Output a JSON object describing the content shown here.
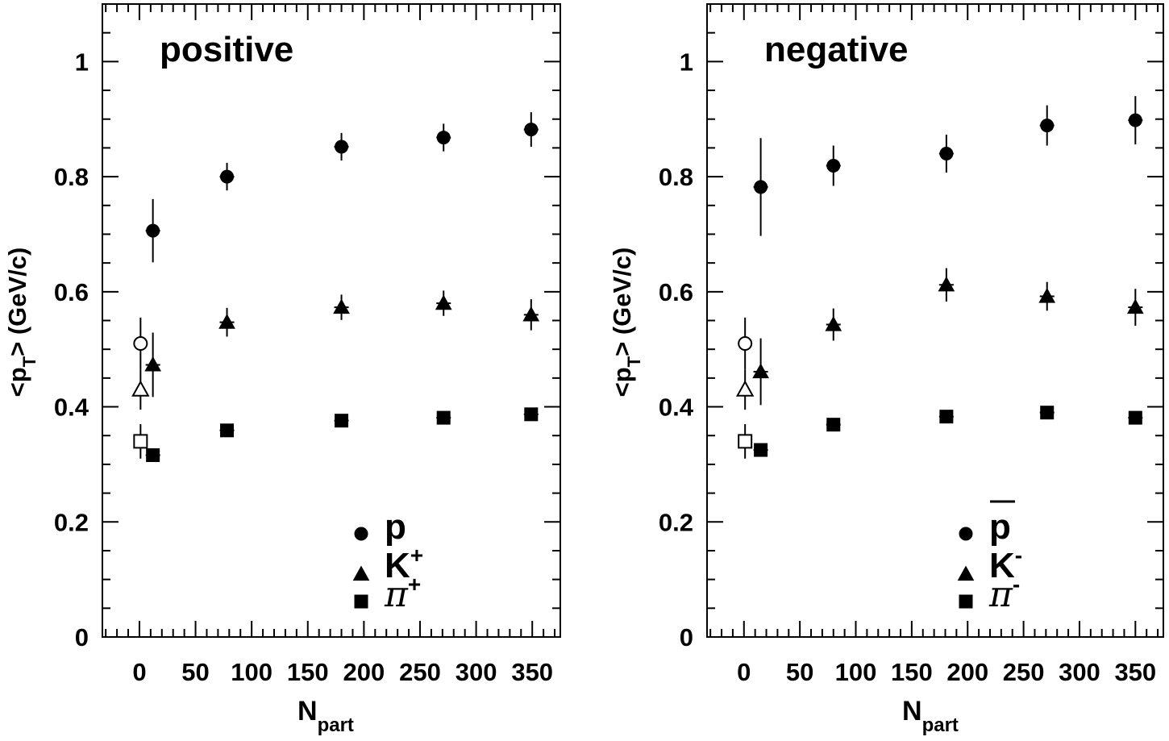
{
  "chart_data": [
    {
      "type": "scatter",
      "title": "positive",
      "xlabel": "N",
      "xlabel_sub": "part",
      "ylabel": "<p",
      "ylabel_sub": "T",
      "ylabel_rest": "> (GeV/c)",
      "xlim": [
        -33,
        375
      ],
      "ylim": [
        0,
        1.1
      ],
      "xticks": [
        0,
        50,
        100,
        150,
        200,
        250,
        300,
        350
      ],
      "yticks": [
        0,
        0.2,
        0.4,
        0.6,
        0.8,
        1
      ],
      "ytick_labels": [
        "0",
        "0.2",
        "0.4",
        "0.6",
        "0.8",
        "1"
      ],
      "grid": false,
      "legend_position": "bottom-right",
      "series": [
        {
          "name": "p",
          "legend_sup": "",
          "overline": false,
          "marker": "circle",
          "x": [
            12,
            78,
            180,
            271,
            349
          ],
          "y": [
            0.706,
            0.8,
            0.852,
            0.868,
            0.882
          ],
          "err": [
            0.055,
            0.024,
            0.024,
            0.024,
            0.03
          ]
        },
        {
          "name": "K",
          "legend_sup": "+",
          "overline": false,
          "marker": "triangle",
          "x": [
            12,
            78,
            180,
            271,
            349
          ],
          "y": [
            0.473,
            0.547,
            0.573,
            0.58,
            0.56
          ],
          "err": [
            0.056,
            0.025,
            0.022,
            0.022,
            0.027
          ]
        },
        {
          "name": "π",
          "legend_sup": "+",
          "overline": false,
          "marker": "square",
          "x": [
            12,
            78,
            180,
            271,
            349
          ],
          "y": [
            0.316,
            0.359,
            0.376,
            0.381,
            0.387
          ],
          "err": [
            0.006,
            0.005,
            0.005,
            0.005,
            0.005
          ]
        }
      ],
      "reference_points": [
        {
          "marker": "circle-open",
          "x": 1,
          "y": 0.51,
          "err": 0.045
        },
        {
          "marker": "triangle-open",
          "x": 1,
          "y": 0.43,
          "err": 0.035
        },
        {
          "marker": "square-open",
          "x": 1,
          "y": 0.34,
          "err": 0.03
        }
      ]
    },
    {
      "type": "scatter",
      "title": "negative",
      "xlabel": "N",
      "xlabel_sub": "part",
      "ylabel": "<p",
      "ylabel_sub": "T",
      "ylabel_rest": "> (GeV/c)",
      "xlim": [
        -33,
        375
      ],
      "ylim": [
        0,
        1.1
      ],
      "xticks": [
        0,
        50,
        100,
        150,
        200,
        250,
        300,
        350
      ],
      "yticks": [
        0,
        0.2,
        0.4,
        0.6,
        0.8,
        1
      ],
      "ytick_labels": [
        "0",
        "0.2",
        "0.4",
        "0.6",
        "0.8",
        "1"
      ],
      "grid": false,
      "legend_position": "bottom-right",
      "series": [
        {
          "name": "p",
          "legend_sup": "",
          "overline": true,
          "marker": "circle",
          "x": [
            15,
            80,
            181,
            271,
            350
          ],
          "y": [
            0.782,
            0.819,
            0.84,
            0.889,
            0.898
          ],
          "err": [
            0.085,
            0.035,
            0.033,
            0.035,
            0.042
          ]
        },
        {
          "name": "K",
          "legend_sup": "-",
          "overline": false,
          "marker": "triangle",
          "x": [
            15,
            80,
            181,
            271,
            350
          ],
          "y": [
            0.461,
            0.543,
            0.612,
            0.592,
            0.573
          ],
          "err": [
            0.058,
            0.028,
            0.029,
            0.025,
            0.032
          ]
        },
        {
          "name": "π",
          "legend_sup": "-",
          "overline": false,
          "marker": "square",
          "x": [
            15,
            80,
            181,
            271,
            350
          ],
          "y": [
            0.325,
            0.369,
            0.383,
            0.39,
            0.381
          ],
          "err": [
            0.005,
            0.005,
            0.005,
            0.005,
            0.005
          ]
        }
      ],
      "reference_points": [
        {
          "marker": "circle-open",
          "x": 1,
          "y": 0.51,
          "err": 0.045
        },
        {
          "marker": "triangle-open",
          "x": 1,
          "y": 0.43,
          "err": 0.035
        },
        {
          "marker": "square-open",
          "x": 1,
          "y": 0.34,
          "err": 0.03
        }
      ]
    }
  ]
}
